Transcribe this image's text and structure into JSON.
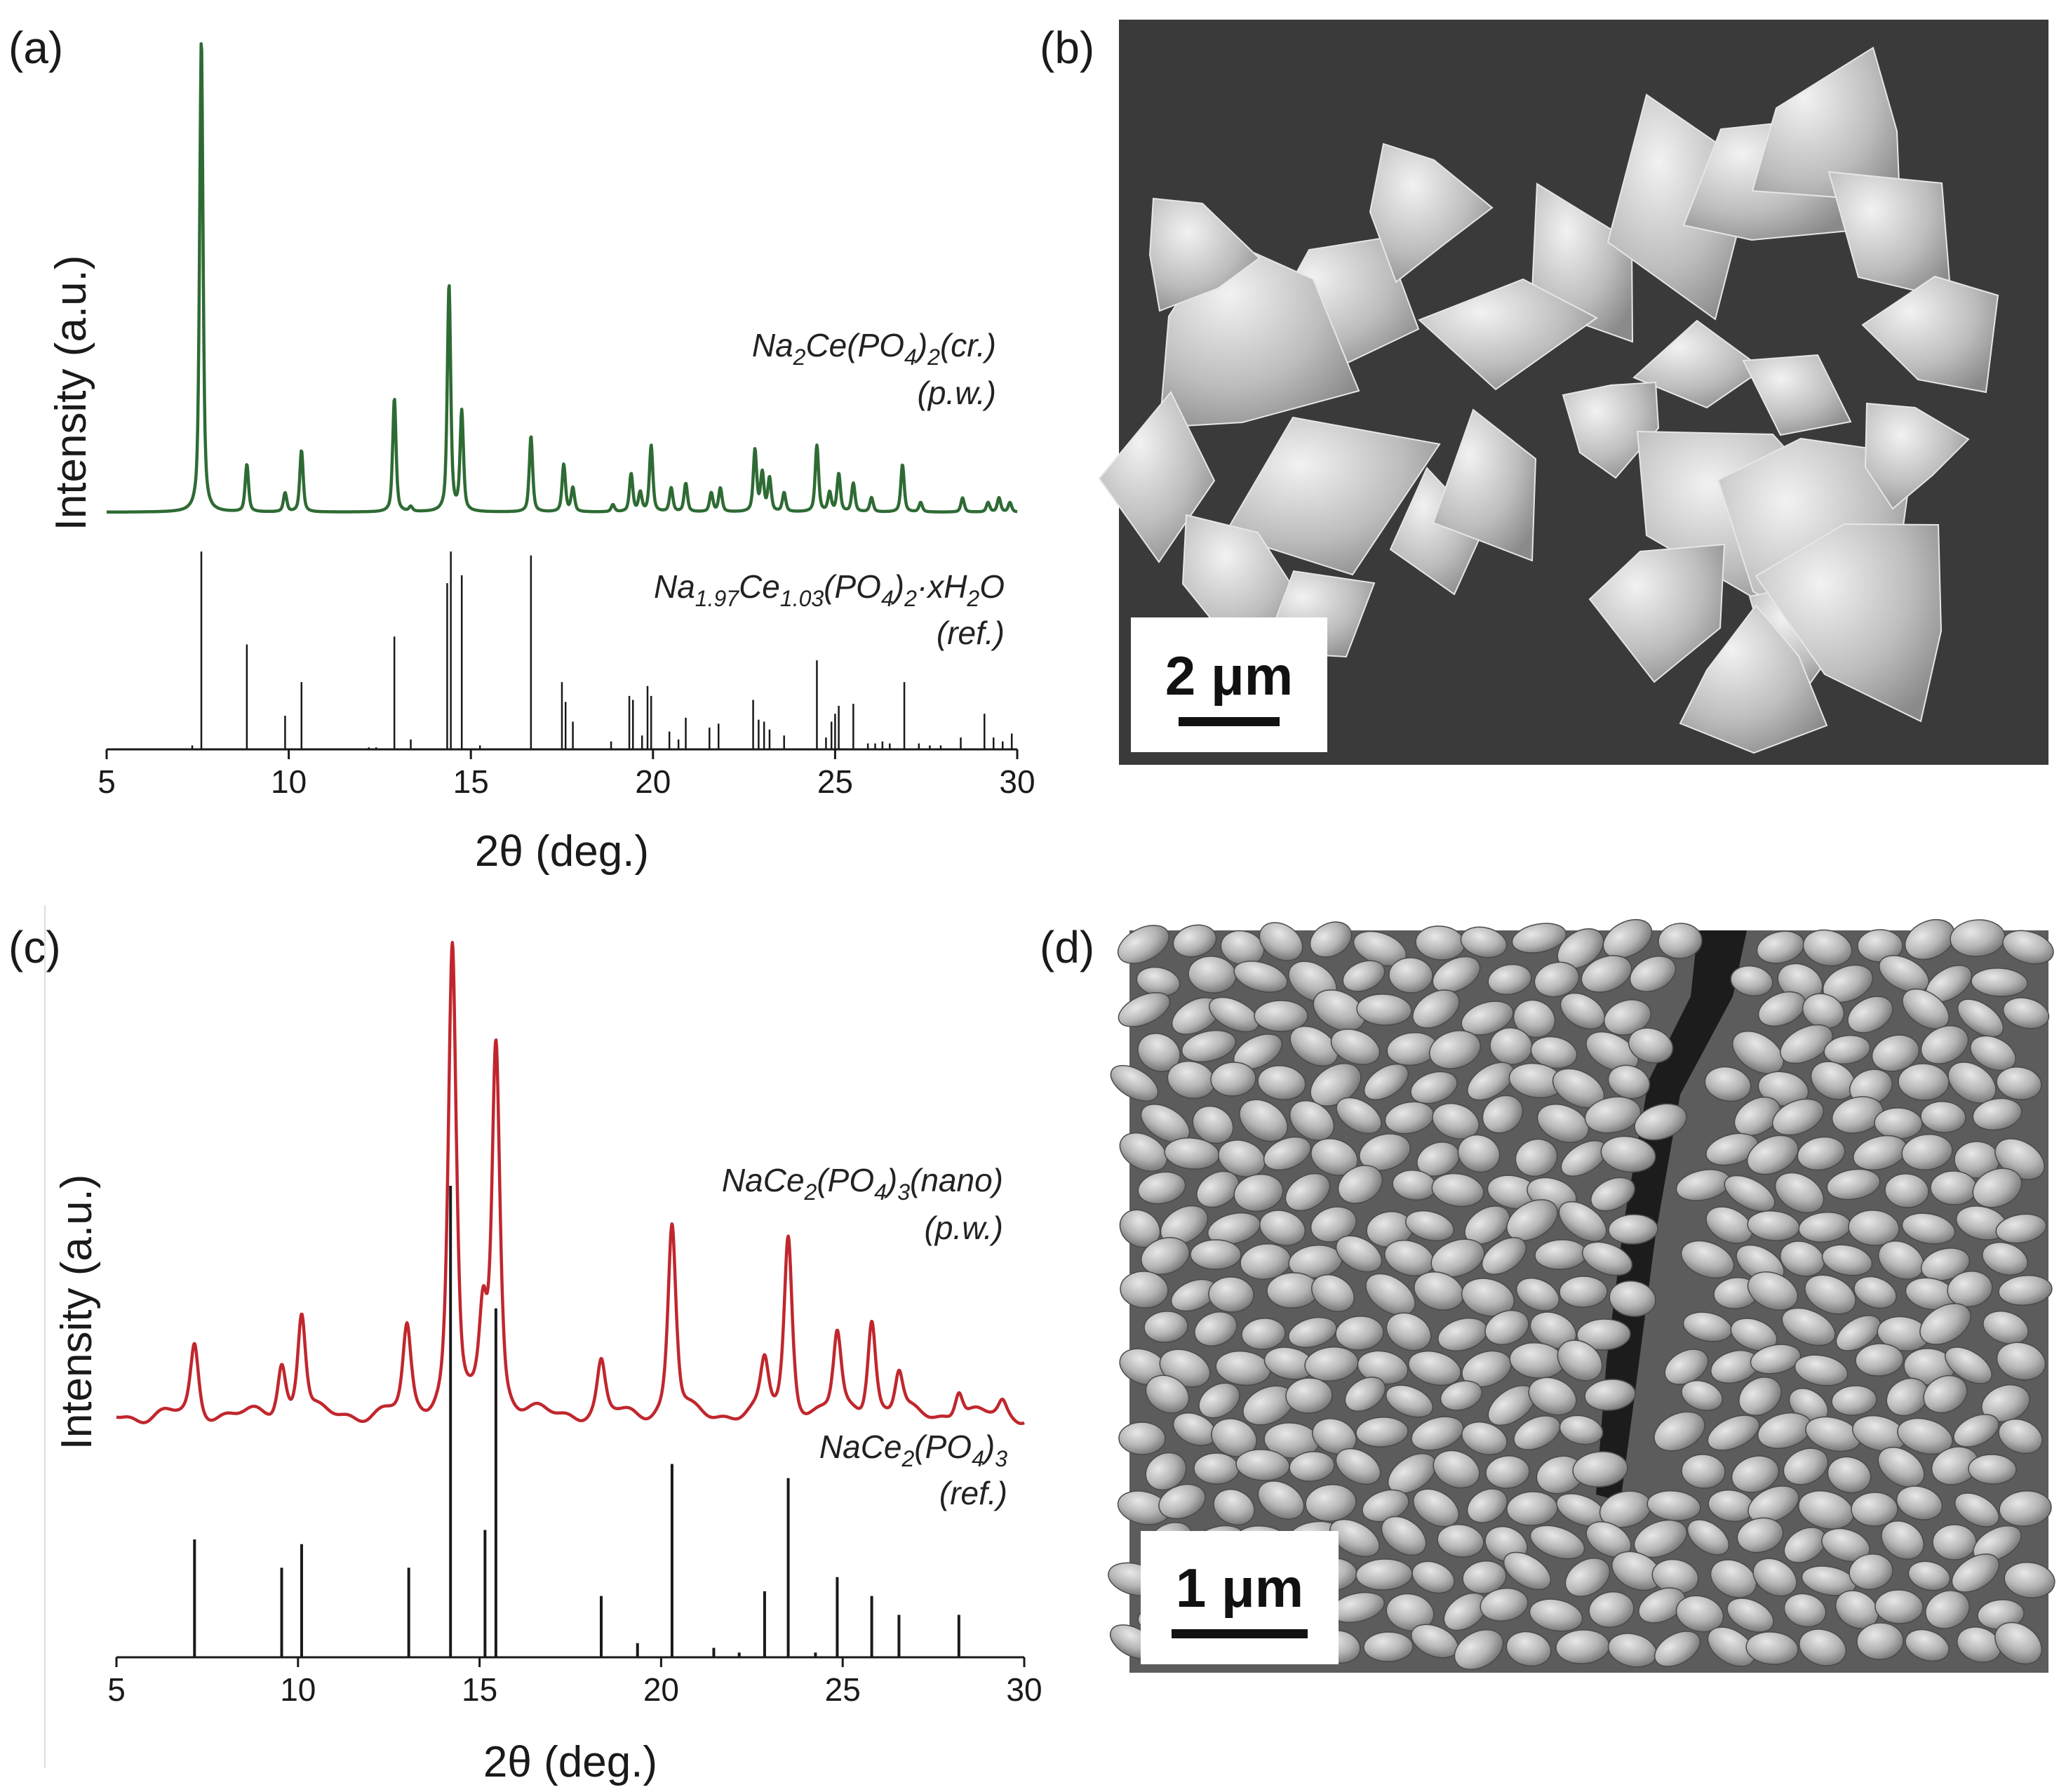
{
  "chart_data": [
    {
      "panel": "(a)",
      "type": "line",
      "xlabel": "2θ (deg.)",
      "ylabel": "Intensity (a.u.)",
      "xlim": [
        5,
        30
      ],
      "xticks": [
        5,
        10,
        15,
        20,
        25,
        30
      ],
      "color": "#2e6b34",
      "annotations": [
        {
          "text": "Na2Ce(PO4)2(cr.)",
          "parts": [
            [
              "Na",
              ""
            ],
            [
              "2",
              "sub"
            ],
            [
              "Ce(PO",
              ""
            ],
            [
              "4",
              "sub"
            ],
            [
              ")",
              ""
            ],
            [
              "2",
              "sub"
            ],
            [
              "(cr.)",
              ""
            ]
          ]
        },
        {
          "text": "(p.w.)",
          "parts": [
            [
              "(p.w.)",
              ""
            ]
          ]
        },
        {
          "text": "Na1.97Ce1.03(PO4)2·xH2O",
          "parts": [
            [
              "Na",
              ""
            ],
            [
              "1.97",
              "sub"
            ],
            [
              "Ce",
              ""
            ],
            [
              "1.03",
              "sub"
            ],
            [
              "(PO",
              ""
            ],
            [
              "4",
              "sub"
            ],
            [
              ")",
              ""
            ],
            [
              "2",
              "sub"
            ],
            [
              "·xH",
              ""
            ],
            [
              "2",
              "sub"
            ],
            [
              "O",
              ""
            ]
          ]
        },
        {
          "text": "(ref.)",
          "parts": [
            [
              "(ref.)",
              ""
            ]
          ]
        }
      ],
      "series": [
        {
          "kind": "measured",
          "peaks": [
            [
              7.6,
              1.0
            ],
            [
              8.85,
              0.1
            ],
            [
              9.9,
              0.04
            ],
            [
              10.35,
              0.13
            ],
            [
              12.9,
              0.24
            ],
            [
              13.35,
              0.01
            ],
            [
              14.4,
              0.48
            ],
            [
              14.75,
              0.21
            ],
            [
              16.65,
              0.16
            ],
            [
              17.55,
              0.1
            ],
            [
              17.8,
              0.05
            ],
            [
              18.9,
              0.015
            ],
            [
              19.4,
              0.08
            ],
            [
              19.65,
              0.04
            ],
            [
              19.95,
              0.14
            ],
            [
              20.5,
              0.05
            ],
            [
              20.9,
              0.06
            ],
            [
              21.6,
              0.04
            ],
            [
              21.85,
              0.05
            ],
            [
              22.8,
              0.13
            ],
            [
              23.0,
              0.08
            ],
            [
              23.2,
              0.07
            ],
            [
              23.6,
              0.04
            ],
            [
              24.5,
              0.14
            ],
            [
              24.85,
              0.04
            ],
            [
              25.1,
              0.08
            ],
            [
              25.5,
              0.06
            ],
            [
              26.0,
              0.03
            ],
            [
              26.85,
              0.1
            ],
            [
              27.35,
              0.02
            ],
            [
              28.5,
              0.03
            ],
            [
              29.2,
              0.02
            ],
            [
              29.5,
              0.03
            ],
            [
              29.8,
              0.02
            ]
          ]
        },
        {
          "kind": "reference",
          "sticks": [
            [
              7.35,
              0.02
            ],
            [
              7.6,
              1.0
            ],
            [
              8.85,
              0.53
            ],
            [
              9.9,
              0.17
            ],
            [
              10.35,
              0.34
            ],
            [
              12.2,
              0.01
            ],
            [
              12.4,
              0.01
            ],
            [
              12.9,
              0.57
            ],
            [
              13.35,
              0.05
            ],
            [
              14.35,
              0.84
            ],
            [
              14.45,
              1.0
            ],
            [
              14.75,
              0.88
            ],
            [
              15.25,
              0.02
            ],
            [
              16.65,
              0.98
            ],
            [
              17.5,
              0.34
            ],
            [
              17.6,
              0.24
            ],
            [
              17.8,
              0.14
            ],
            [
              18.85,
              0.04
            ],
            [
              19.35,
              0.27
            ],
            [
              19.45,
              0.25
            ],
            [
              19.7,
              0.07
            ],
            [
              19.85,
              0.32
            ],
            [
              19.95,
              0.27
            ],
            [
              20.45,
              0.09
            ],
            [
              20.7,
              0.05
            ],
            [
              20.9,
              0.16
            ],
            [
              21.55,
              0.11
            ],
            [
              21.8,
              0.13
            ],
            [
              22.75,
              0.25
            ],
            [
              22.9,
              0.15
            ],
            [
              23.05,
              0.14
            ],
            [
              23.2,
              0.1
            ],
            [
              23.6,
              0.07
            ],
            [
              24.5,
              0.45
            ],
            [
              24.75,
              0.06
            ],
            [
              24.9,
              0.14
            ],
            [
              25.0,
              0.18
            ],
            [
              25.1,
              0.22
            ],
            [
              25.5,
              0.23
            ],
            [
              25.9,
              0.03
            ],
            [
              26.1,
              0.03
            ],
            [
              26.3,
              0.04
            ],
            [
              26.5,
              0.03
            ],
            [
              26.9,
              0.34
            ],
            [
              27.3,
              0.03
            ],
            [
              27.6,
              0.02
            ],
            [
              27.9,
              0.02
            ],
            [
              28.45,
              0.06
            ],
            [
              29.1,
              0.18
            ],
            [
              29.35,
              0.06
            ],
            [
              29.6,
              0.04
            ],
            [
              29.85,
              0.08
            ]
          ]
        }
      ]
    },
    {
      "panel": "(c)",
      "type": "line",
      "xlabel": "2θ (deg.)",
      "ylabel": "Intensity (a.u.)",
      "xlim": [
        5,
        30
      ],
      "xticks": [
        5,
        10,
        15,
        20,
        25,
        30
      ],
      "color": "#c0272d",
      "annotations": [
        {
          "text": "NaCe2(PO4)3(nano)",
          "parts": [
            [
              "NaCe",
              ""
            ],
            [
              "2",
              "sub"
            ],
            [
              "(PO",
              ""
            ],
            [
              "4",
              "sub"
            ],
            [
              ")",
              ""
            ],
            [
              "3",
              "sub"
            ],
            [
              "(nano)",
              ""
            ]
          ]
        },
        {
          "text": "(p.w.)",
          "parts": [
            [
              "(p.w.)",
              ""
            ]
          ]
        },
        {
          "text": "NaCe2(PO4)3",
          "parts": [
            [
              "NaCe",
              ""
            ],
            [
              "2",
              "sub"
            ],
            [
              "(PO",
              ""
            ],
            [
              "4",
              "sub"
            ],
            [
              ")",
              ""
            ],
            [
              "3",
              "sub"
            ]
          ]
        },
        {
          "text": "(ref.)",
          "parts": [
            [
              "(ref.)",
              ""
            ]
          ]
        }
      ],
      "series": [
        {
          "kind": "measured",
          "peaks": [
            [
              7.15,
              0.15
            ],
            [
              9.55,
              0.11
            ],
            [
              10.1,
              0.22
            ],
            [
              13.0,
              0.18
            ],
            [
              14.25,
              1.0
            ],
            [
              15.1,
              0.2
            ],
            [
              15.45,
              0.79
            ],
            [
              18.35,
              0.11
            ],
            [
              20.3,
              0.41
            ],
            [
              22.85,
              0.11
            ],
            [
              23.5,
              0.38
            ],
            [
              24.85,
              0.17
            ],
            [
              25.8,
              0.21
            ],
            [
              26.55,
              0.09
            ],
            [
              28.2,
              0.06
            ],
            [
              29.4,
              0.03
            ]
          ]
        },
        {
          "kind": "reference",
          "sticks": [
            [
              7.15,
              0.25
            ],
            [
              9.55,
              0.19
            ],
            [
              10.1,
              0.24
            ],
            [
              13.05,
              0.19
            ],
            [
              14.2,
              1.0
            ],
            [
              15.15,
              0.27
            ],
            [
              15.45,
              0.74
            ],
            [
              18.35,
              0.13
            ],
            [
              19.35,
              0.03
            ],
            [
              20.3,
              0.41
            ],
            [
              21.45,
              0.02
            ],
            [
              22.15,
              0.01
            ],
            [
              22.85,
              0.14
            ],
            [
              23.5,
              0.38
            ],
            [
              24.25,
              0.01
            ],
            [
              24.85,
              0.17
            ],
            [
              25.8,
              0.13
            ],
            [
              26.55,
              0.09
            ],
            [
              28.2,
              0.09
            ]
          ]
        }
      ]
    }
  ],
  "micrographs": [
    {
      "panel": "(b)",
      "scale_label": "2 μm"
    },
    {
      "panel": "(d)",
      "scale_label": "1 μm"
    }
  ]
}
